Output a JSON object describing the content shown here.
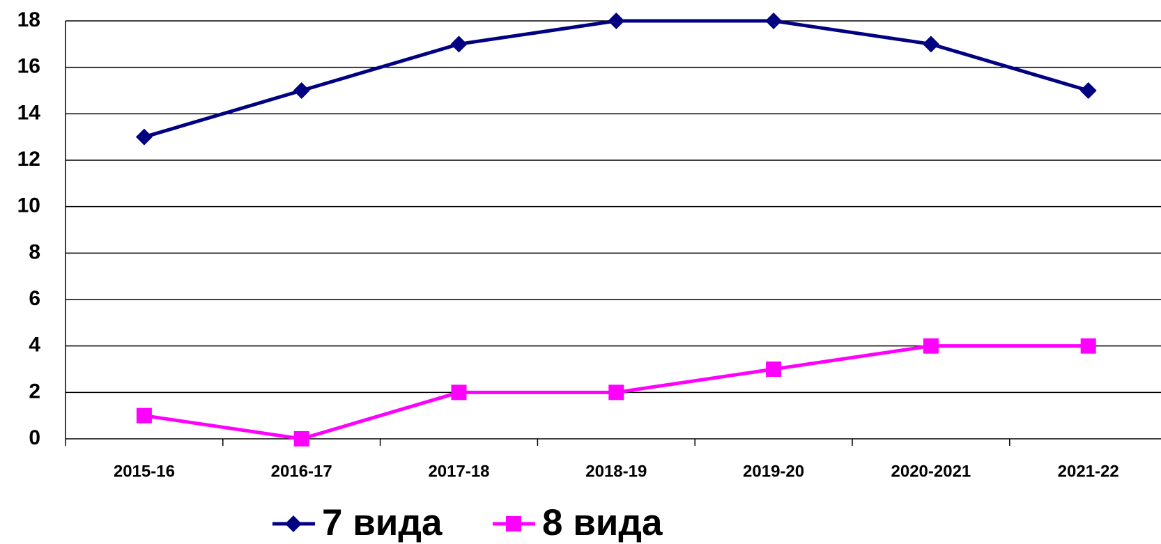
{
  "chart_data": {
    "type": "line",
    "categories": [
      "2015-16",
      "2016-17",
      "2017-18",
      "2018-19",
      "2019-20",
      "2020-2021",
      "2021-22"
    ],
    "series": [
      {
        "name": "7 вида",
        "color": "#000080",
        "marker": "diamond",
        "values": [
          13,
          15,
          17,
          18,
          18,
          17,
          15
        ]
      },
      {
        "name": "8 вида",
        "color": "#ff00ff",
        "marker": "square",
        "values": [
          1,
          0,
          2,
          2,
          3,
          4,
          4
        ]
      }
    ],
    "ylim": [
      0,
      18
    ],
    "yticks": [
      0,
      2,
      4,
      6,
      8,
      10,
      12,
      14,
      16,
      18
    ],
    "grid": true,
    "legend": "bottom"
  }
}
